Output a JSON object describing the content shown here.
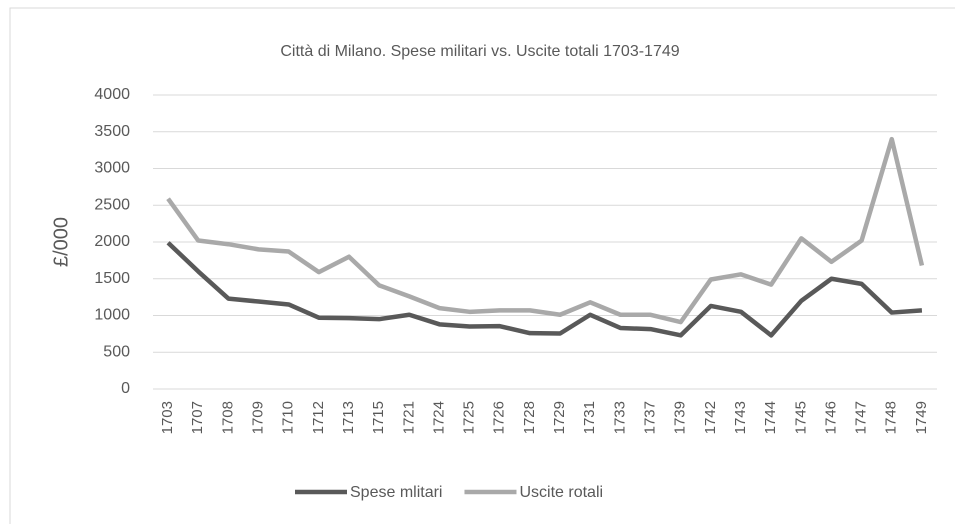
{
  "chart_data": {
    "type": "line",
    "title": "Città di Milano. Spese militari vs. Uscite totali 1703-1749",
    "y_label": "£/000",
    "categories": [
      "1703",
      "1707",
      "1708",
      "1709",
      "1710",
      "1712",
      "1713",
      "1715",
      "1721",
      "1724",
      "1725",
      "1726",
      "1728",
      "1729",
      "1731",
      "1733",
      "1737",
      "1739",
      "1742",
      "1743",
      "1744",
      "1745",
      "1746",
      "1747",
      "1748",
      "1749"
    ],
    "series": [
      {
        "name": "Spese mlitari",
        "color": "#595959",
        "values": [
          1990,
          1600,
          1230,
          1190,
          1150,
          970,
          965,
          950,
          1010,
          880,
          850,
          855,
          760,
          755,
          1010,
          830,
          815,
          730,
          1130,
          1050,
          730,
          1200,
          1500,
          1430,
          1040,
          1070
        ]
      },
      {
        "name": "Uscite rotali",
        "color": "#a9a9a9",
        "values": [
          2590,
          2020,
          1970,
          1900,
          1870,
          1590,
          1800,
          1410,
          1260,
          1100,
          1050,
          1070,
          1070,
          1010,
          1180,
          1010,
          1010,
          910,
          1490,
          1560,
          1420,
          2050,
          1730,
          2020,
          3400,
          1680
        ]
      }
    ],
    "ylim": [
      0,
      4000
    ],
    "yticks": [
      0,
      500,
      1000,
      1500,
      2000,
      2500,
      3000,
      3500,
      4000
    ],
    "grid": true,
    "legend": "bottom"
  }
}
